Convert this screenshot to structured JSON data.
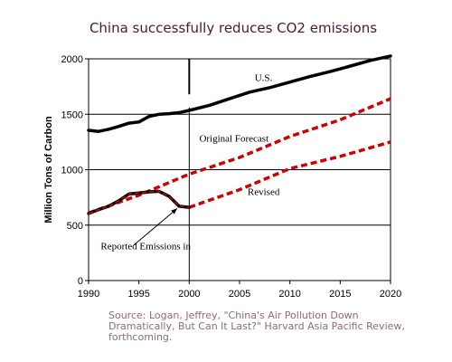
{
  "chart_data": {
    "type": "line",
    "title": "China successfully reduces CO2 emissions",
    "ylabel": "Million Tons of Carbon",
    "xlabel": "",
    "xlim": [
      1990,
      2020
    ],
    "ylim": [
      0,
      2000
    ],
    "x_ticks": [
      1990,
      1995,
      2000,
      2005,
      2010,
      2015,
      2020
    ],
    "y_ticks": [
      0,
      500,
      1000,
      1500,
      2000
    ],
    "grid": "horizontal",
    "marker_year": 2000,
    "series": [
      {
        "name": "U.S.",
        "style": "solid",
        "color": "#000000",
        "x": [
          1990,
          1991,
          1992,
          1993,
          1994,
          1995,
          1996,
          1997,
          1998,
          1999,
          2000,
          2002,
          2004,
          2006,
          2008,
          2010,
          2012,
          2014,
          2016,
          2018,
          2020
        ],
        "y": [
          1355,
          1345,
          1365,
          1390,
          1420,
          1430,
          1480,
          1500,
          1505,
          1515,
          1535,
          1580,
          1640,
          1700,
          1740,
          1790,
          1840,
          1885,
          1935,
          1985,
          2025
        ]
      },
      {
        "name": "Original Forecast",
        "style": "dashed",
        "color": "#cc0000",
        "x": [
          1990,
          1995,
          2000,
          2005,
          2010,
          2015,
          2020
        ],
        "y": [
          610,
          770,
          960,
          1110,
          1300,
          1450,
          1640
        ]
      },
      {
        "name": "Revised",
        "style": "dashed",
        "color": "#cc0000",
        "x": [
          2000,
          2005,
          2010,
          2015,
          2020
        ],
        "y": [
          660,
          820,
          1010,
          1120,
          1250
        ]
      },
      {
        "name": "Reported Emissions",
        "style": "solid",
        "color": "#000000",
        "overlay": "#cc0000",
        "x": [
          1990,
          1991,
          1992,
          1993,
          1994,
          1995,
          1996,
          1997,
          1998,
          1999,
          2000
        ],
        "y": [
          605,
          640,
          670,
          720,
          780,
          790,
          800,
          805,
          760,
          670,
          660
        ]
      }
    ],
    "annotations": [
      {
        "text": "U.S.",
        "x": 2006.5,
        "y": 1800
      },
      {
        "text": "Original Forecast",
        "x": 2001,
        "y": 1255
      },
      {
        "text": "Revised",
        "x": 2005.8,
        "y": 770
      },
      {
        "text": "Reported Emissions in",
        "x": 1991.2,
        "y": 280
      }
    ],
    "arrow": {
      "from": [
        1994.5,
        320
      ],
      "to": [
        1998.8,
        650
      ]
    }
  },
  "source_text": "Source: Logan, Jeffrey, \"China's Air Pollution Down Dramatically, But Can It Last?\" Harvard Asia Pacific Review, forthcoming."
}
